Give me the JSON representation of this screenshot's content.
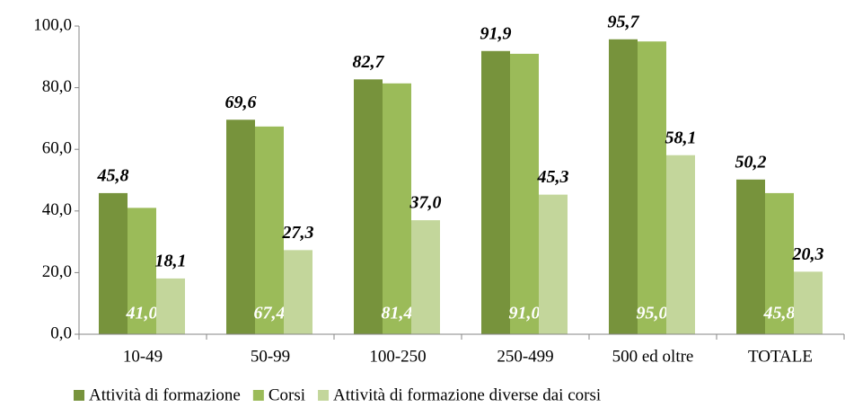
{
  "chart_data": {
    "type": "bar",
    "categories": [
      "10-49",
      "50-99",
      "100-250",
      "250-499",
      "500 ed oltre",
      "TOTALE"
    ],
    "series": [
      {
        "name": "Attività di formazione",
        "color": "#77933c",
        "values": [
          45.8,
          69.6,
          82.7,
          91.9,
          95.7,
          50.2
        ],
        "value_labels": [
          "45,8",
          "69,6",
          "82,7",
          "91,9",
          "95,7",
          "50,2"
        ]
      },
      {
        "name": "Corsi",
        "color": "#9bbb59",
        "values": [
          41.0,
          67.4,
          81.4,
          91.0,
          95.0,
          45.8
        ],
        "value_labels": [
          "41,0",
          "67,4",
          "81,4",
          "91,0",
          "95,0",
          "45,8"
        ]
      },
      {
        "name": "Attività di formazione diverse dai corsi",
        "color": "#c3d69b",
        "values": [
          18.1,
          27.3,
          37.0,
          45.3,
          58.1,
          20.3
        ],
        "value_labels": [
          "18,1",
          "27,3",
          "37,0",
          "45,3",
          "58,1",
          "20,3"
        ]
      }
    ],
    "ylim": [
      0,
      100
    ],
    "yticks": [
      {
        "value": 0,
        "label": "0,0"
      },
      {
        "value": 20,
        "label": "20,0"
      },
      {
        "value": 40,
        "label": "40,0"
      },
      {
        "value": 60,
        "label": "60,0"
      },
      {
        "value": 80,
        "label": "80,0"
      },
      {
        "value": 100,
        "label": "100,0"
      }
    ],
    "legend": "bottom"
  }
}
